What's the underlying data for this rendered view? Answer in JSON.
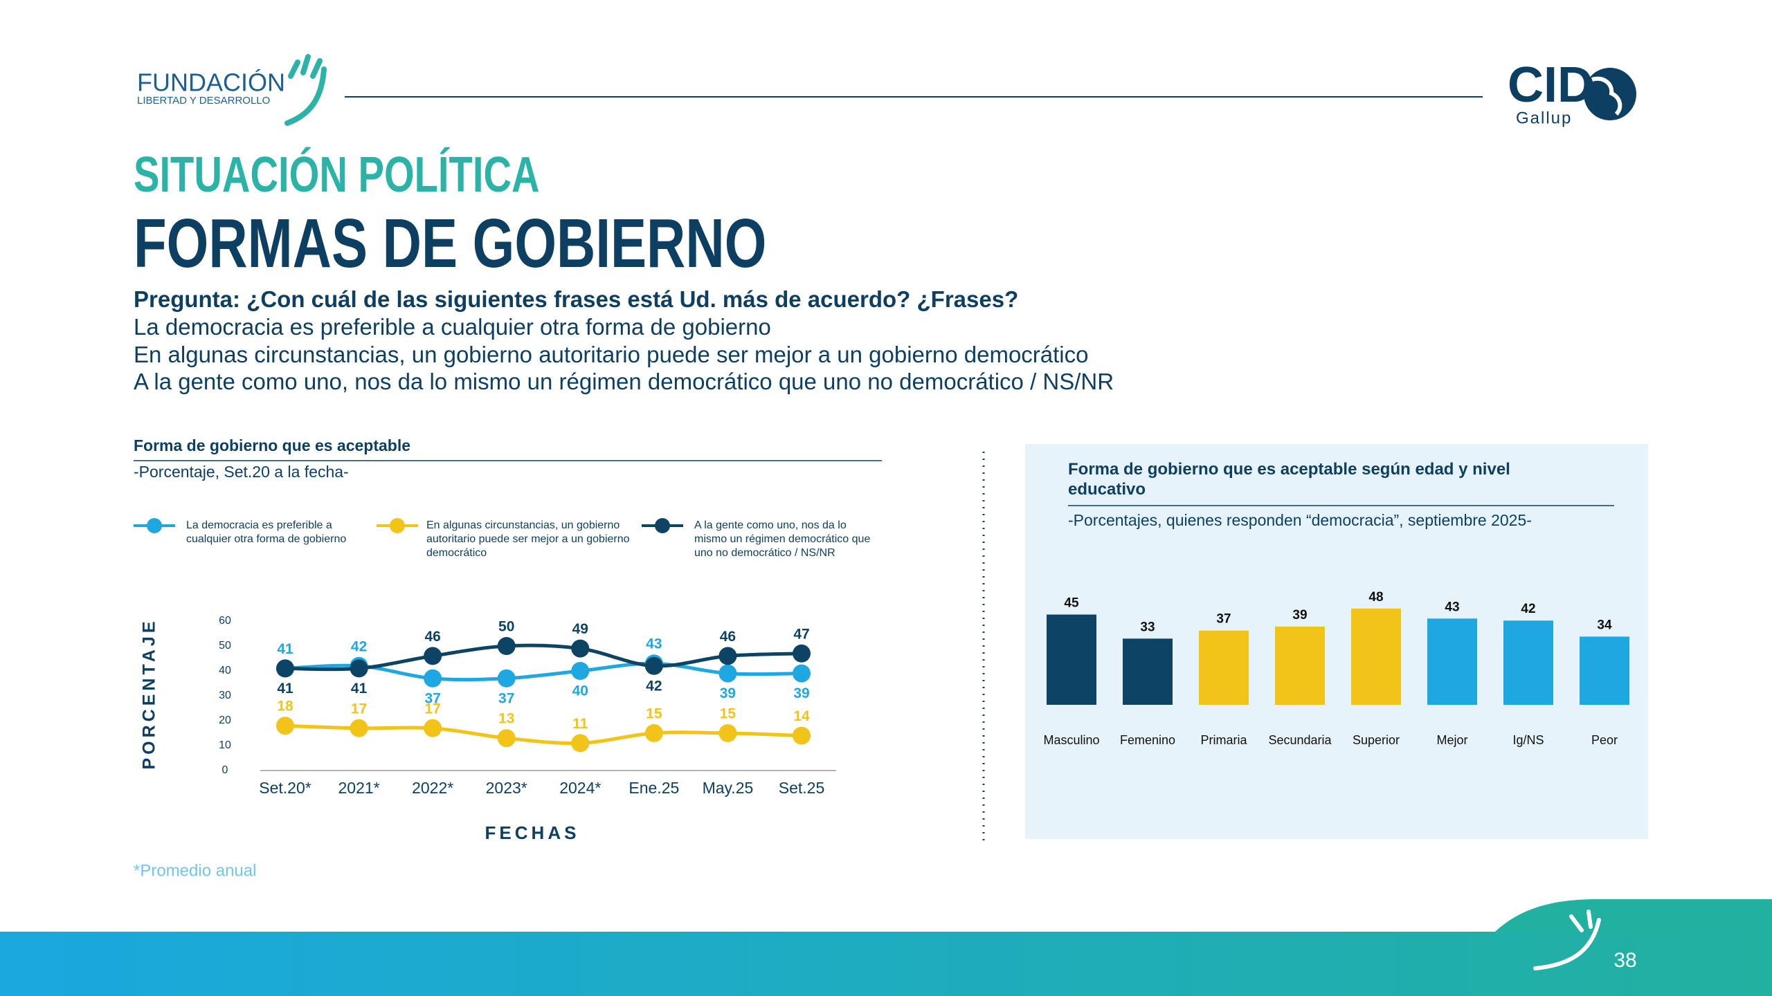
{
  "header": {
    "logo_left": {
      "name": "FUNDACIÓN",
      "tagline": "LIBERTAD Y DESARROLLO"
    },
    "logo_right": {
      "name": "CID",
      "tagline": "Gallup"
    },
    "section": "SITUACIÓN POLÍTICA",
    "title": "FORMAS DE GOBIERNO"
  },
  "question": {
    "label": "Pregunta: ¿Con cuál de las siguientes frases está Ud. más de acuerdo? ¿Frases?",
    "options": [
      "La democracia es preferible a cualquier otra forma de gobierno",
      "En algunas circunstancias, un gobierno autoritario puede ser mejor a un gobierno democrático",
      "A la gente como uno, nos da lo mismo un régimen democrático que uno no democrático / NS/NR"
    ]
  },
  "chart_data": [
    {
      "type": "line",
      "title": "Forma de gobierno que es aceptable",
      "subtitle": "-Porcentaje, Set.20 a la fecha-",
      "x_label": "FECHAS",
      "y_label": "PORCENTAJE",
      "categories": [
        "Set.20*",
        "2021*",
        "2022*",
        "2023*",
        "2024*",
        "Ene.25",
        "May.25",
        "Set.25"
      ],
      "ylim": [
        0,
        60
      ],
      "yticks": [
        0,
        10,
        20,
        30,
        40,
        50,
        60
      ],
      "series": [
        {
          "name": "La democracia es preferible a cualquier otra forma de gobierno",
          "color": "#1ea7e1",
          "values": [
            41,
            42,
            37,
            37,
            40,
            43,
            39,
            39
          ]
        },
        {
          "name": "En algunas circunstancias, un gobierno autoritario puede ser mejor a un gobierno democrático",
          "color": "#f2c318",
          "values": [
            18,
            17,
            17,
            13,
            11,
            15,
            15,
            14
          ]
        },
        {
          "name": "A la gente como uno, nos da lo mismo un régimen democrático que uno no democrático / NS/NR",
          "color": "#0d4466",
          "values": [
            41,
            41,
            46,
            50,
            49,
            42,
            46,
            47
          ]
        }
      ]
    },
    {
      "type": "bar",
      "title": "Forma de gobierno que es aceptable según edad y nivel educativo",
      "subtitle": "-Porcentajes, quienes responden “democracia”, septiembre 2025-",
      "categories": [
        "Masculino",
        "Femenino",
        "Primaria",
        "Secundaria",
        "Superior",
        "Mejor",
        "Ig/NS",
        "Peor"
      ],
      "values": [
        45,
        33,
        37,
        39,
        48,
        43,
        42,
        34
      ],
      "colors": [
        "#0d4466",
        "#0d4466",
        "#f2c318",
        "#f2c318",
        "#f2c318",
        "#1ea7e1",
        "#1ea7e1",
        "#1ea7e1"
      ]
    }
  ],
  "footnote": "*Promedio anual",
  "page_number": "38"
}
